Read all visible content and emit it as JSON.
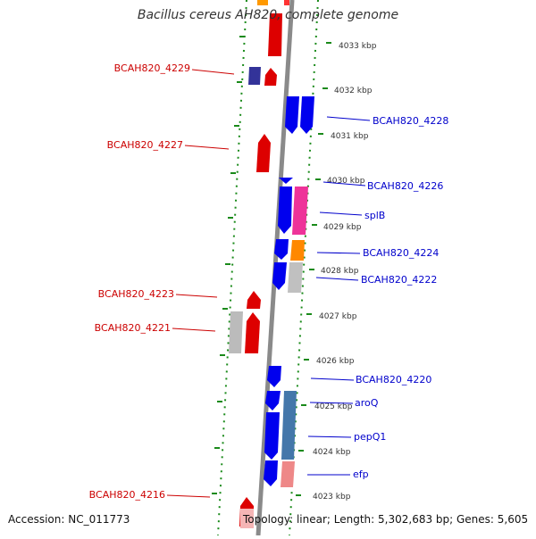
{
  "title": "Bacillus cereus AH820, complete genome",
  "footer": {
    "accession": "Accession: NC_011773",
    "topology": "Topology: linear; Length: 5,302,683 bp; Genes: 5,605"
  },
  "colors": {
    "forward_label": "#cc0000",
    "reverse_label": "#0000cc",
    "tick": "#1a8a1a",
    "axis": "#888888"
  },
  "kbp_ticks": [
    "4033 kbp",
    "4032 kbp",
    "4031 kbp",
    "4030 kbp",
    "4029 kbp",
    "4028 kbp",
    "4027 kbp",
    "4026 kbp",
    "4025 kbp",
    "4024 kbp",
    "4023 kbp"
  ],
  "labels_left": [
    "BCAH820_4229",
    "BCAH820_4227",
    "BCAH820_4223",
    "BCAH820_4221",
    "BCAH820_4216"
  ],
  "labels_right": [
    "BCAH820_4228",
    "BCAH820_4226",
    "splB",
    "BCAH820_4224",
    "BCAH820_4222",
    "BCAH820_4220",
    "aroQ",
    "pepQ1",
    "efp"
  ]
}
